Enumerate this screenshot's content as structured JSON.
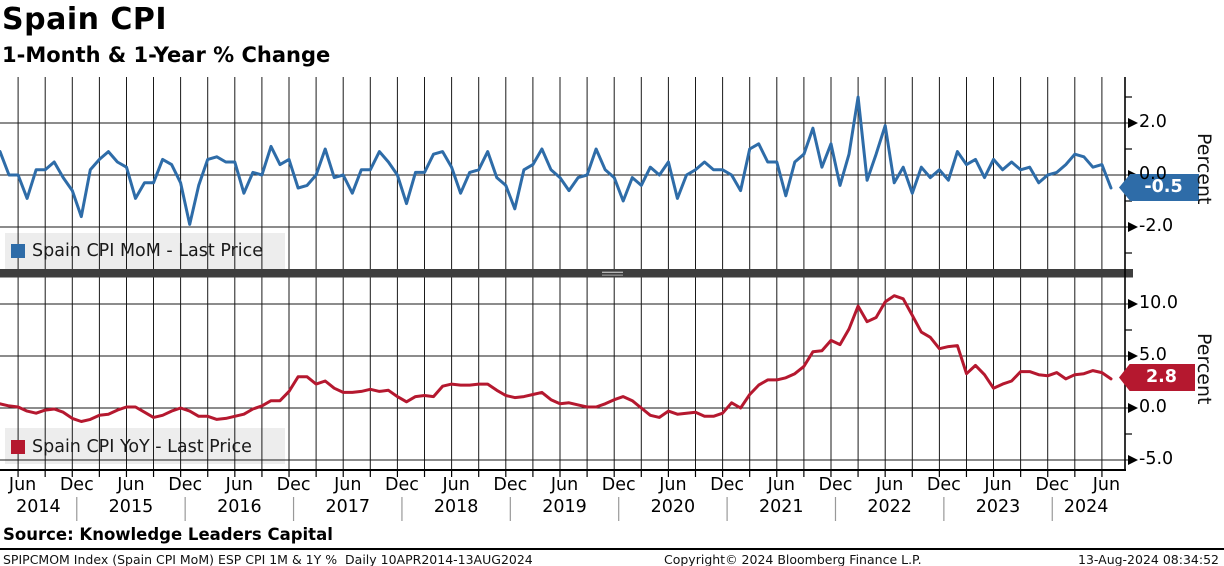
{
  "header": {
    "title": "Spain CPI",
    "subtitle": "1-Month & 1-Year % Change"
  },
  "panels": [
    {
      "legend": "Spain CPI MoM - Last Price",
      "badge": "-0.5",
      "axis_label": "Percent",
      "color": "#2e6ca8",
      "y_ticks": [
        {
          "label": "2.0",
          "value": 2
        },
        {
          "label": "0.0",
          "value": 0
        },
        {
          "label": "-2.0",
          "value": -2
        }
      ],
      "minor_tick_values": [
        3,
        1,
        -1,
        -3
      ]
    },
    {
      "legend": "Spain CPI YoY - Last Price",
      "badge": "2.8",
      "axis_label": "Percent",
      "color": "#b5182f",
      "y_ticks": [
        {
          "label": "10.0",
          "value": 10
        },
        {
          "label": "5.0",
          "value": 5
        },
        {
          "label": "0.0",
          "value": 0
        },
        {
          "label": "-5.0",
          "value": -5
        }
      ],
      "minor_tick_values": [
        7.5,
        2.5,
        -2.5
      ]
    }
  ],
  "x_axis": {
    "month_labels": [
      "Jun",
      "Dec",
      "Jun",
      "Dec",
      "Jun",
      "Dec",
      "Jun",
      "Dec",
      "Jun",
      "Dec",
      "Jun",
      "Dec",
      "Jun",
      "Dec",
      "Jun",
      "Dec",
      "Jun",
      "Dec",
      "Jun",
      "Dec",
      "Jun"
    ],
    "year_labels": [
      "2014",
      "2015",
      "2016",
      "2017",
      "2018",
      "2019",
      "2020",
      "2021",
      "2022",
      "2023",
      "2024"
    ]
  },
  "footer": {
    "source": "Source: Knowledge Leaders Capital",
    "ticker_line": "SPIPCMOM Index (Spain CPI MoM) ESP CPI 1M & 1Y %  Daily 10APR2014-13AUG2024",
    "copyright": "Copyright© 2024 Bloomberg Finance L.P.",
    "timestamp": "13-Aug-2024 08:34:52"
  },
  "chart_data": [
    {
      "type": "line",
      "title": "Spain CPI MoM - Last Price",
      "ylabel": "Percent",
      "x_start": "Apr-2014",
      "x_end": "Jul-2024",
      "x_freq": "monthly",
      "ylim": [
        -3.5,
        3.5
      ],
      "y_gridlines": [
        2,
        0,
        -2
      ],
      "legend_position": "bottom-left",
      "grid": true,
      "last_value": -0.5,
      "line_color": "#2e6ca8",
      "values": [
        0.9,
        0.0,
        0.0,
        -0.9,
        0.2,
        0.2,
        0.5,
        -0.1,
        -0.6,
        -1.6,
        0.2,
        0.6,
        0.9,
        0.5,
        0.3,
        -0.9,
        -0.3,
        -0.3,
        0.6,
        0.4,
        -0.3,
        -1.9,
        -0.4,
        0.6,
        0.7,
        0.5,
        0.5,
        -0.7,
        0.1,
        0.0,
        1.1,
        0.4,
        0.6,
        -0.5,
        -0.4,
        0.0,
        1.0,
        -0.1,
        0.0,
        -0.7,
        0.2,
        0.2,
        0.9,
        0.5,
        0.0,
        -1.1,
        0.1,
        0.1,
        0.8,
        0.9,
        0.3,
        -0.7,
        0.1,
        0.2,
        0.9,
        -0.1,
        -0.4,
        -1.3,
        0.2,
        0.4,
        1.0,
        0.2,
        -0.1,
        -0.6,
        -0.1,
        0.0,
        1.0,
        0.2,
        -0.1,
        -1.0,
        -0.1,
        -0.4,
        0.3,
        0.0,
        0.5,
        -0.9,
        0.0,
        0.2,
        0.5,
        0.2,
        0.2,
        0.0,
        -0.6,
        1.0,
        1.2,
        0.5,
        0.5,
        -0.8,
        0.5,
        0.8,
        1.8,
        0.3,
        1.2,
        -0.4,
        0.8,
        3.0,
        -0.2,
        0.8,
        1.9,
        -0.3,
        0.3,
        -0.7,
        0.3,
        -0.1,
        0.2,
        -0.2,
        0.9,
        0.4,
        0.6,
        -0.1,
        0.6,
        0.2,
        0.5,
        0.2,
        0.3,
        -0.3,
        0.0,
        0.1,
        0.4,
        0.8,
        0.7,
        0.3,
        0.4,
        -0.5
      ]
    },
    {
      "type": "line",
      "title": "Spain CPI YoY - Last Price",
      "ylabel": "Percent",
      "x_start": "Apr-2014",
      "x_end": "Jul-2024",
      "x_freq": "monthly",
      "ylim": [
        -6,
        12.3
      ],
      "y_gridlines": [
        10,
        5,
        0,
        -5
      ],
      "legend_position": "bottom-left",
      "grid": true,
      "last_value": 2.8,
      "line_color": "#b5182f",
      "values": [
        0.4,
        0.2,
        0.1,
        -0.3,
        -0.5,
        -0.2,
        -0.1,
        -0.4,
        -1.0,
        -1.3,
        -1.1,
        -0.7,
        -0.6,
        -0.2,
        0.1,
        0.1,
        -0.4,
        -0.9,
        -0.7,
        -0.3,
        0.0,
        -0.3,
        -0.8,
        -0.8,
        -1.1,
        -1.0,
        -0.8,
        -0.6,
        -0.1,
        0.2,
        0.7,
        0.7,
        1.6,
        3.0,
        3.0,
        2.3,
        2.6,
        1.9,
        1.5,
        1.5,
        1.6,
        1.8,
        1.6,
        1.7,
        1.1,
        0.6,
        1.1,
        1.2,
        1.1,
        2.1,
        2.3,
        2.2,
        2.2,
        2.3,
        2.3,
        1.7,
        1.2,
        1.0,
        1.1,
        1.3,
        1.5,
        0.8,
        0.4,
        0.5,
        0.3,
        0.1,
        0.1,
        0.4,
        0.8,
        1.1,
        0.7,
        0.0,
        -0.7,
        -0.9,
        -0.3,
        -0.6,
        -0.5,
        -0.4,
        -0.8,
        -0.8,
        -0.5,
        0.5,
        0.0,
        1.3,
        2.2,
        2.7,
        2.7,
        2.9,
        3.3,
        4.0,
        5.4,
        5.5,
        6.5,
        6.1,
        7.6,
        9.8,
        8.3,
        8.7,
        10.2,
        10.8,
        10.5,
        8.9,
        7.3,
        6.8,
        5.7,
        5.9,
        6.0,
        3.3,
        4.1,
        3.2,
        1.9,
        2.3,
        2.6,
        3.5,
        3.5,
        3.2,
        3.1,
        3.4,
        2.8,
        3.2,
        3.3,
        3.6,
        3.4,
        2.8
      ]
    }
  ]
}
